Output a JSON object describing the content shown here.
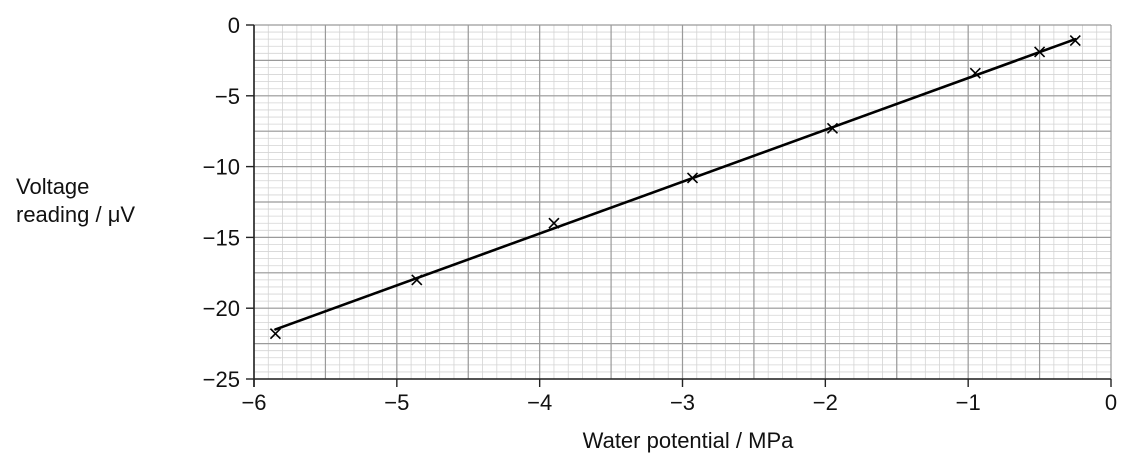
{
  "chart_data": {
    "type": "scatter",
    "title": "",
    "xlabel": "Water potential / MPa",
    "ylabel_lines": [
      "Voltage",
      "reading / μV"
    ],
    "xlim": [
      -6,
      0
    ],
    "ylim": [
      -25,
      0
    ],
    "x_ticks": [
      -6,
      -5,
      -4,
      -3,
      -2,
      -1,
      0
    ],
    "x_tick_labels": [
      "−6",
      "−5",
      "−4",
      "−3",
      "−2",
      "−1",
      "0"
    ],
    "y_ticks": [
      0,
      -5,
      -10,
      -15,
      -20,
      -25
    ],
    "y_tick_labels": [
      "0",
      "−5",
      "−10",
      "−15",
      "−20",
      "−25"
    ],
    "grid": true,
    "major_grid_step": {
      "x": 0.5,
      "y": 2.5
    },
    "minor_grid_step": {
      "x": 0.1,
      "y": 0.5
    },
    "marker": "x",
    "points": [
      {
        "x": -5.85,
        "y": -21.8
      },
      {
        "x": -4.86,
        "y": -18.0
      },
      {
        "x": -3.9,
        "y": -14.0
      },
      {
        "x": -2.93,
        "y": -10.8
      },
      {
        "x": -1.95,
        "y": -7.3
      },
      {
        "x": -0.95,
        "y": -3.4
      },
      {
        "x": -0.5,
        "y": -1.9
      },
      {
        "x": -0.25,
        "y": -1.1
      }
    ],
    "best_fit_line": {
      "from": {
        "x": -5.85,
        "y": -21.5
      },
      "to": {
        "x": -0.25,
        "y": -1.0
      }
    },
    "colors": {
      "line": "#000000",
      "major_grid": "#9a9a9a",
      "minor_grid": "#d4d4d4",
      "text": "#111111"
    }
  }
}
